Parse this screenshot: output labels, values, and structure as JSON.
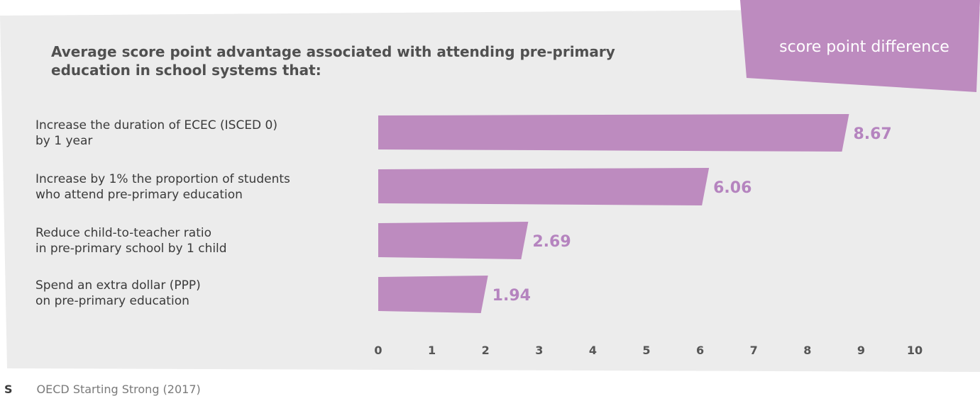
{
  "chart_data": {
    "type": "bar",
    "orientation": "horizontal",
    "title_line1": "Average score point advantage associated with attending pre-primary",
    "title_line2": "education in school systems that:",
    "unit_tag": "score point difference",
    "categories": [
      [
        "Increase the duration of ECEC (ISCED 0)",
        "by 1 year"
      ],
      [
        "Increase by 1% the proportion of students",
        "who attend pre-primary education"
      ],
      [
        "Reduce child-to-teacher ratio",
        "in pre-primary school by 1 child"
      ],
      [
        "Spend an extra dollar (PPP)",
        "on pre-primary education"
      ]
    ],
    "values": [
      8.67,
      6.06,
      2.69,
      1.94
    ],
    "value_labels": [
      "8.67",
      "6.06",
      "2.69",
      "1.94"
    ],
    "x_ticks": [
      "0",
      "1",
      "2",
      "3",
      "4",
      "5",
      "6",
      "7",
      "8",
      "9",
      "10"
    ],
    "xlim": [
      0,
      10
    ],
    "grid": false,
    "colors": {
      "bar": "#bd8bbf",
      "value_label": "#b584bf",
      "panel": "#ececec",
      "tag": "#bd8bbf"
    }
  },
  "source": {
    "lead": "S",
    "text": "OECD Starting Strong (2017)"
  }
}
